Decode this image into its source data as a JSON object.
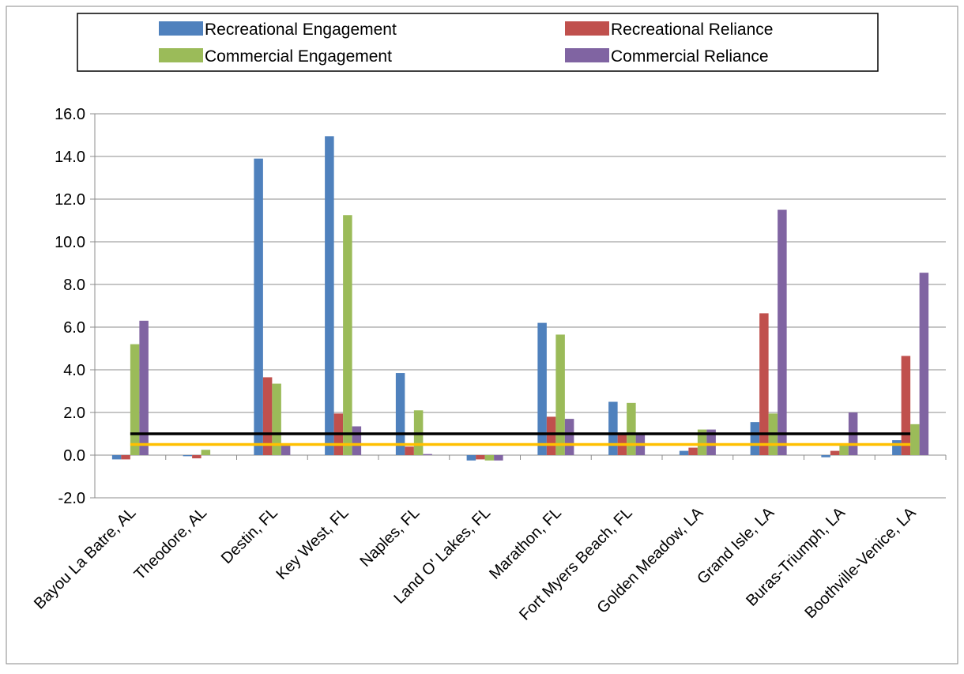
{
  "chart_data": {
    "type": "bar",
    "title": "",
    "xlabel": "",
    "ylabel": "",
    "categories": [
      "Bayou La Batre, AL",
      "Theodore, AL",
      "Destin, FL",
      "Key West, FL",
      "Naples, FL",
      "Land O' Lakes, FL",
      "Marathon, FL",
      "Fort Myers Beach, FL",
      "Golden Meadow, LA",
      "Grand Isle, LA",
      "Buras-Triumph, LA",
      "Boothville-Venice, LA"
    ],
    "series": [
      {
        "name": "Recreational Engagement",
        "color": "#4F81BD",
        "values": [
          -0.2,
          -0.05,
          13.9,
          14.95,
          3.85,
          -0.25,
          6.2,
          2.5,
          0.2,
          1.55,
          -0.1,
          0.7
        ]
      },
      {
        "name": "Recreational Reliance",
        "color": "#C0504D",
        "values": [
          -0.2,
          -0.15,
          3.65,
          1.95,
          0.4,
          -0.2,
          1.8,
          1.0,
          0.35,
          6.65,
          0.2,
          4.65
        ]
      },
      {
        "name": "Commercial Engagement",
        "color": "#9BBB59",
        "values": [
          5.2,
          0.25,
          3.35,
          11.25,
          2.1,
          -0.25,
          5.65,
          2.45,
          1.2,
          1.95,
          0.45,
          1.45
        ]
      },
      {
        "name": "Commercial Reliance",
        "color": "#8064A2",
        "values": [
          6.3,
          0.0,
          0.5,
          1.35,
          0.05,
          -0.25,
          1.7,
          1.0,
          1.2,
          11.5,
          2.0,
          8.55
        ]
      }
    ],
    "reference_lines": [
      {
        "value": 1.0,
        "color": "#000000"
      },
      {
        "value": 0.5,
        "color": "#FFC000"
      }
    ],
    "ylim": [
      -2.0,
      16.0
    ],
    "y_ticks": [
      "-2.0",
      "0.0",
      "2.0",
      "4.0",
      "6.0",
      "8.0",
      "10.0",
      "12.0",
      "14.0",
      "16.0"
    ],
    "grid": true,
    "legend_position": "top"
  }
}
